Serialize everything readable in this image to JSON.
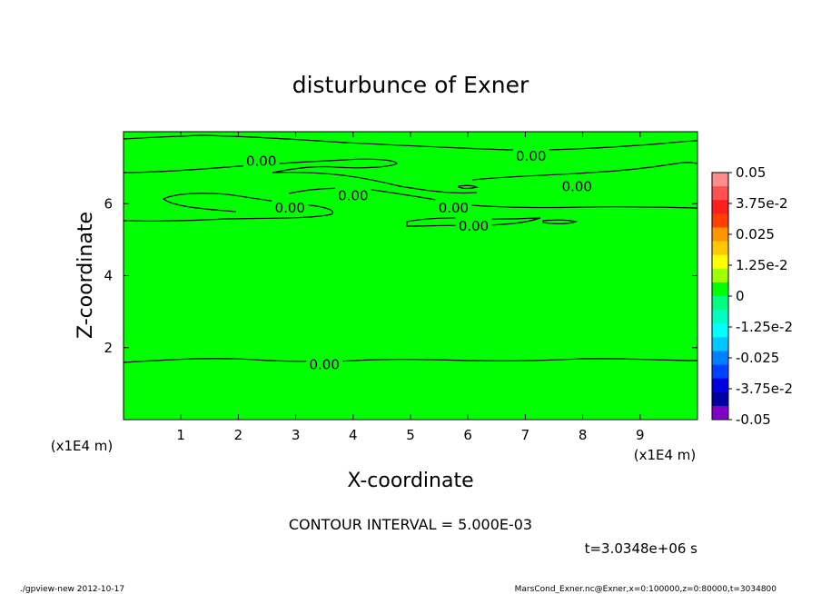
{
  "chart_data": {
    "type": "contour",
    "title": "disturbunce of Exner",
    "xlabel": "X-coordinate",
    "ylabel": "Z-coordinate",
    "x_unit": "(x1E4 m)",
    "y_unit": "(x1E4 m)",
    "xlim": [
      0,
      10
    ],
    "ylim": [
      0,
      8
    ],
    "x_ticks": [
      1,
      2,
      3,
      4,
      5,
      6,
      7,
      8,
      9
    ],
    "y_ticks": [
      2,
      4,
      6
    ],
    "field_value": 0,
    "field_color": "#00ff00",
    "contour_line_color": "#000000",
    "contour_labels": [
      {
        "text": "0.00",
        "x": 2.4,
        "z": 7.2
      },
      {
        "text": "0.00",
        "x": 7.1,
        "z": 7.35
      },
      {
        "text": "0.00",
        "x": 7.9,
        "z": 6.5
      },
      {
        "text": "0.00",
        "x": 4.0,
        "z": 6.25
      },
      {
        "text": "0.00",
        "x": 2.9,
        "z": 5.9
      },
      {
        "text": "0.00",
        "x": 5.75,
        "z": 5.9
      },
      {
        "text": "0.00",
        "x": 6.1,
        "z": 5.4
      },
      {
        "text": "0.00",
        "x": 3.5,
        "z": 1.55
      }
    ],
    "colorbar": {
      "ticks": [
        "0.05",
        "3.75e-2",
        "0.025",
        "1.25e-2",
        "0",
        "-1.25e-2",
        "-0.025",
        "-3.75e-2",
        "-0.05"
      ],
      "colors_top_to_bottom": [
        "#ff8c8c",
        "#ff5050",
        "#ff1e1e",
        "#ff4000",
        "#ff9600",
        "#ffc800",
        "#ffff00",
        "#a0ff00",
        "#00ff00",
        "#00ff80",
        "#00ffc0",
        "#00ffff",
        "#00c8ff",
        "#0080ff",
        "#0040ff",
        "#0000e0",
        "#0000a0",
        "#8000c8"
      ]
    }
  },
  "footer": {
    "contour_interval": "CONTOUR INTERVAL = 5.000E-03",
    "time": "t=3.0348e+06 s",
    "program": "./gpview-new  2012-10-17",
    "source": "MarsCond_Exner.nc@Exner,x=0:100000,z=0:80000,t=3034800"
  }
}
